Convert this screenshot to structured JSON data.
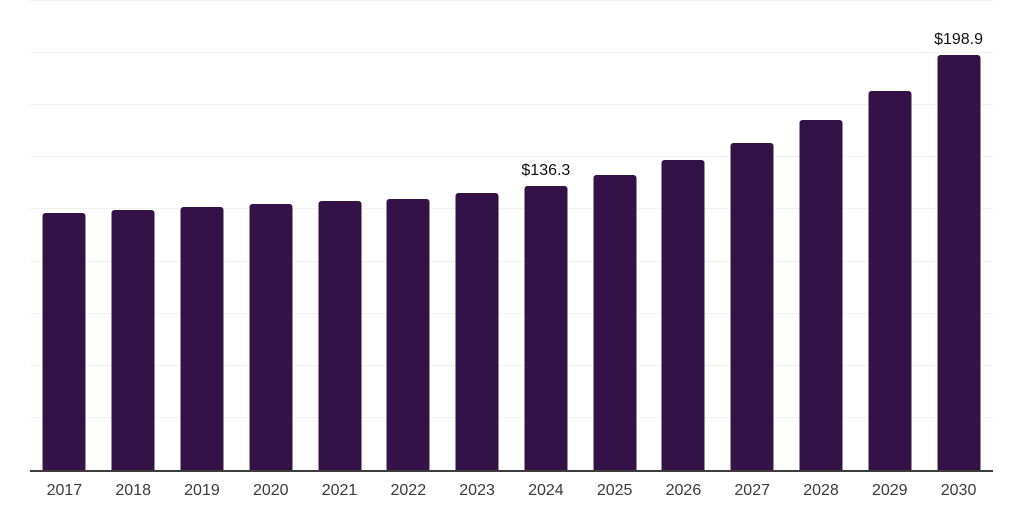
{
  "chart_data": {
    "type": "bar",
    "title": "",
    "xlabel": "",
    "ylabel": "",
    "categories": [
      "2017",
      "2018",
      "2019",
      "2020",
      "2021",
      "2022",
      "2023",
      "2024",
      "2025",
      "2026",
      "2027",
      "2028",
      "2029",
      "2030"
    ],
    "values": [
      123.5,
      124.6,
      126.0,
      127.5,
      128.9,
      130.0,
      133.1,
      136.3,
      141.4,
      148.6,
      157.0,
      168.1,
      181.6,
      198.9
    ],
    "value_labels": [
      "",
      "",
      "",
      "",
      "",
      "",
      "",
      "$136.3",
      "",
      "",
      "",
      "",
      "",
      "$198.9"
    ],
    "ylim": [
      0,
      225
    ],
    "gridline_step": 25,
    "grid": "horizontal",
    "legend_position": "none"
  },
  "colors": {
    "bar": "#331347",
    "gridline": "#f1f1f1",
    "axis": "#3d3d3d",
    "tick_text": "#3a3a3a",
    "value_label_text": "#111111",
    "background": "#ffffff"
  }
}
